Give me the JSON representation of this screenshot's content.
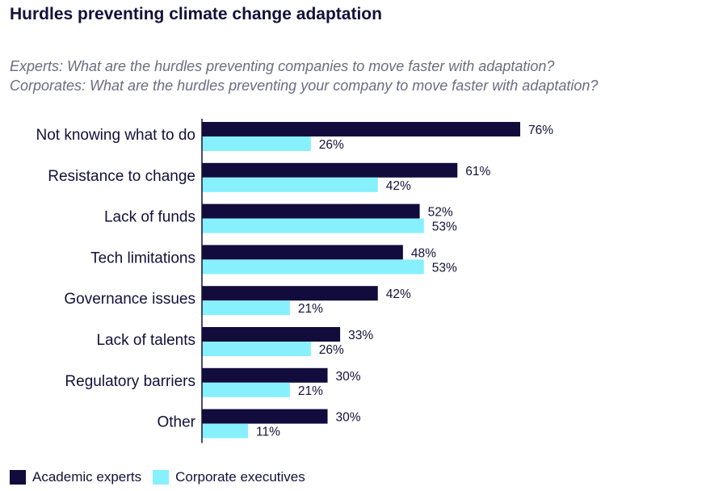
{
  "chart_data": {
    "type": "bar",
    "orientation": "horizontal",
    "title": "Hurdles preventing climate change adaptation",
    "subtitle_lines": [
      "Experts: What are the hurdles preventing companies to move faster with adaptation?",
      "Corporates: What are the hurdles preventing your company to move faster with adaptation?"
    ],
    "categories": [
      "Not knowing what to do",
      "Resistance to change",
      "Lack of funds",
      "Tech limitations",
      "Governance issues",
      "Lack of talents",
      "Regulatory barriers",
      "Other"
    ],
    "series": [
      {
        "name": "Academic experts",
        "color": "#110c3c",
        "values": [
          76,
          61,
          52,
          48,
          42,
          33,
          30,
          30
        ],
        "labels": [
          "76%",
          "61%",
          "52%",
          "48%",
          "42%",
          "33%",
          "30%",
          "30%"
        ]
      },
      {
        "name": "Corporate executives",
        "color": "#86f1fd",
        "values": [
          26,
          42,
          53,
          53,
          21,
          26,
          21,
          11
        ],
        "labels": [
          "26%",
          "42%",
          "53%",
          "53%",
          "21%",
          "26%",
          "21%",
          "11%"
        ]
      }
    ],
    "xlim": [
      0,
      100
    ],
    "value_format": "percent",
    "legend": "bottom-left",
    "axis_line_color": "#14103a"
  }
}
